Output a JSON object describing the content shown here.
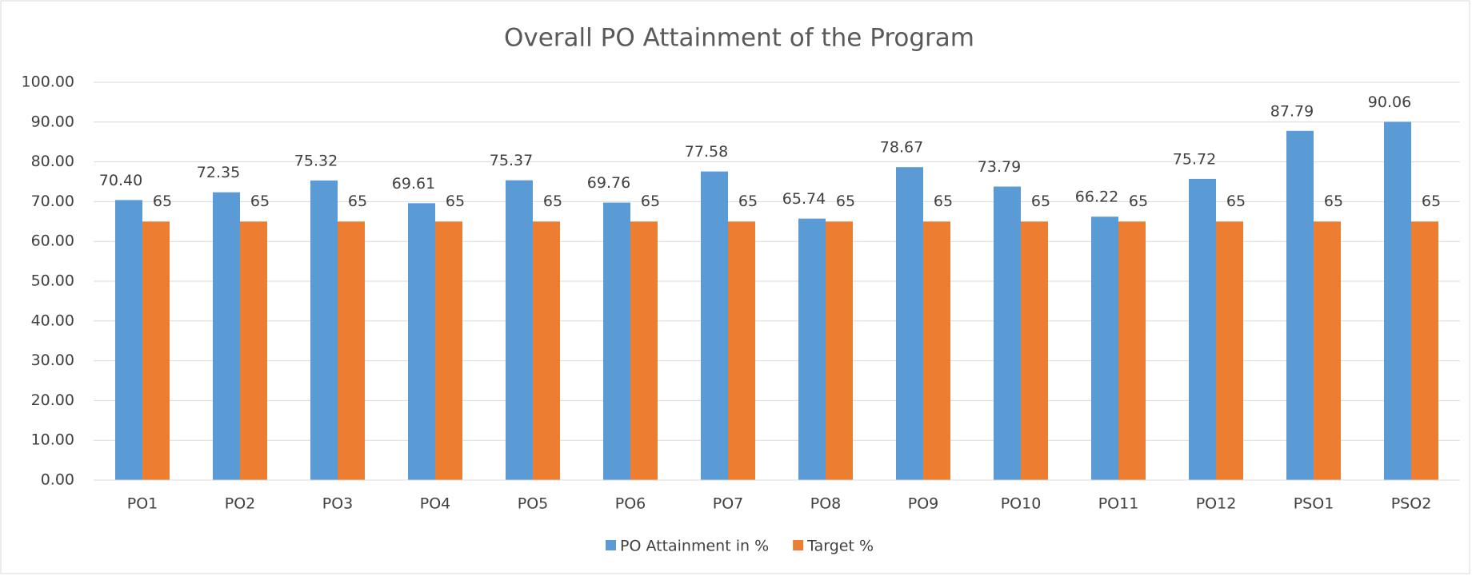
{
  "chart_data": {
    "type": "bar",
    "title": "Overall PO Attainment of the Program",
    "categories": [
      "PO1",
      "PO2",
      "PO3",
      "PO4",
      "PO5",
      "PO6",
      "PO7",
      "PO8",
      "PO9",
      "PO10",
      "PO11",
      "PO12",
      "PSO1",
      "PSO2"
    ],
    "series": [
      {
        "name": "PO Attainment in %",
        "color": "#5b9bd5",
        "values": [
          70.4,
          72.35,
          75.32,
          69.61,
          75.37,
          69.76,
          77.58,
          65.74,
          78.67,
          73.79,
          66.22,
          75.72,
          87.79,
          90.06
        ],
        "value_labels": [
          "70.40",
          "72.35",
          "75.32",
          "69.61",
          "75.37",
          "69.76",
          "77.58",
          "65.74",
          "78.67",
          "73.79",
          "66.22",
          "75.72",
          "87.79",
          "90.06"
        ]
      },
      {
        "name": "Target %",
        "color": "#ed7d31",
        "values": [
          65,
          65,
          65,
          65,
          65,
          65,
          65,
          65,
          65,
          65,
          65,
          65,
          65,
          65
        ]
      }
    ],
    "ylim": [
      0,
      100
    ],
    "yticks": [
      {
        "value": 0,
        "label": "0.00"
      },
      {
        "value": 10,
        "label": "10.00"
      },
      {
        "value": 20,
        "label": "20.00"
      },
      {
        "value": 30,
        "label": "30.00"
      },
      {
        "value": 40,
        "label": "40.00"
      },
      {
        "value": 50,
        "label": "50.00"
      },
      {
        "value": 60,
        "label": "60.00"
      },
      {
        "value": 70,
        "label": "70.00"
      },
      {
        "value": 80,
        "label": "80.00"
      },
      {
        "value": 90,
        "label": "90.00"
      },
      {
        "value": 100,
        "label": "100.00"
      }
    ],
    "grid": true,
    "legend": "bottom"
  }
}
